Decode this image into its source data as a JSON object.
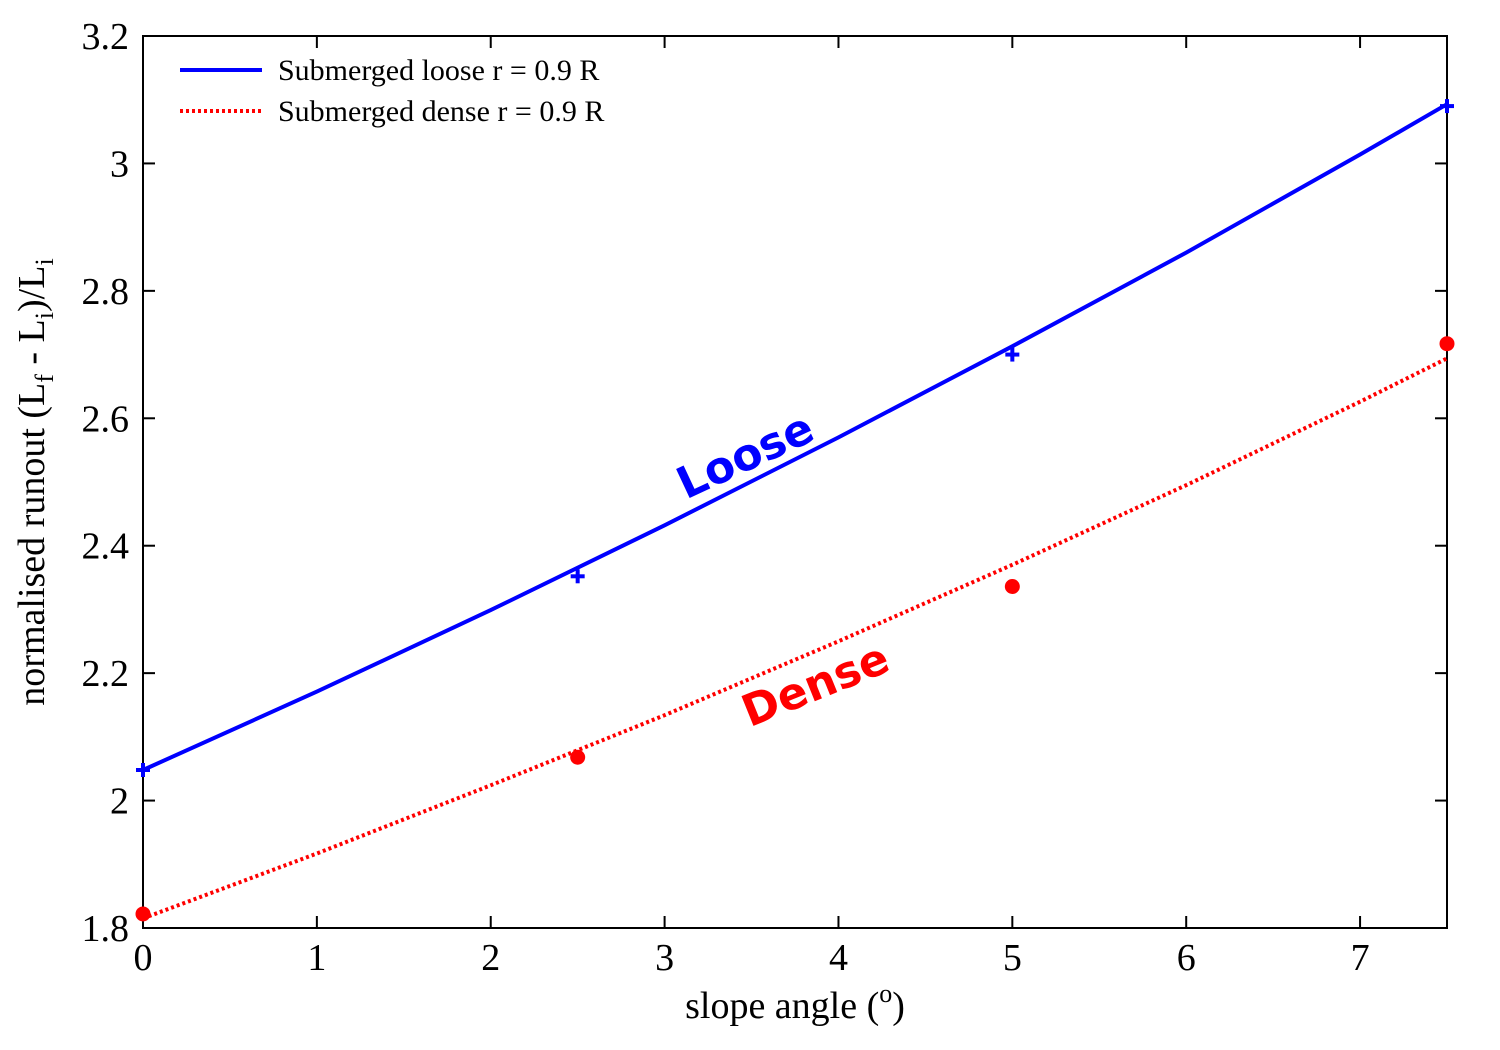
{
  "chart_data": {
    "type": "line",
    "title": "",
    "xlabel": {
      "main": "slope angle (",
      "sup": "o",
      "end": ")"
    },
    "ylabel": {
      "p1": "normalised runout (L",
      "s1": "f",
      "p2": " - L",
      "s2": "i",
      "p3": ")/L",
      "s3": "i"
    },
    "xlim": [
      0,
      7.5
    ],
    "ylim": [
      1.8,
      3.2
    ],
    "xticks": [
      "0",
      "1",
      "2",
      "3",
      "4",
      "5",
      "6",
      "7"
    ],
    "yticks": [
      "1.8",
      "2",
      "2.2",
      "2.4",
      "2.6",
      "2.8",
      "3",
      "3.2"
    ],
    "grid": false,
    "legend_position": "top-left",
    "series": [
      {
        "name": "Submerged loose r = 0.9 R",
        "color": "#0000ff",
        "line_style": "solid",
        "marker": "plus",
        "points": [
          [
            0,
            2.048
          ],
          [
            2.5,
            2.352
          ],
          [
            5,
            2.7
          ],
          [
            7.5,
            3.09
          ]
        ],
        "fit": [
          [
            0,
            2.048
          ],
          [
            1,
            2.171
          ],
          [
            2,
            2.299
          ],
          [
            3,
            2.432
          ],
          [
            4,
            2.57
          ],
          [
            5,
            2.713
          ],
          [
            6,
            2.86
          ],
          [
            7,
            3.014
          ],
          [
            7.5,
            3.093
          ]
        ]
      },
      {
        "name": "Submerged dense r = 0.9 R",
        "color": "#ff0000",
        "line_style": "dotted",
        "marker": "circle",
        "points": [
          [
            0,
            1.822
          ],
          [
            2.5,
            2.068
          ],
          [
            5,
            2.336
          ],
          [
            7.5,
            2.717
          ]
        ],
        "fit": [
          [
            0,
            1.815
          ],
          [
            1,
            1.917
          ],
          [
            2,
            2.024
          ],
          [
            3,
            2.134
          ],
          [
            4,
            2.25
          ],
          [
            5,
            2.37
          ],
          [
            6,
            2.495
          ],
          [
            7,
            2.626
          ],
          [
            7.5,
            2.694
          ]
        ]
      }
    ],
    "annotations": [
      {
        "text": "Loose",
        "color": "#0000ff",
        "x": 3.5,
        "y": 2.52,
        "angle": -25
      },
      {
        "text": "Dense",
        "color": "#ff0000",
        "x": 3.9,
        "y": 2.16,
        "angle": -22
      }
    ]
  }
}
